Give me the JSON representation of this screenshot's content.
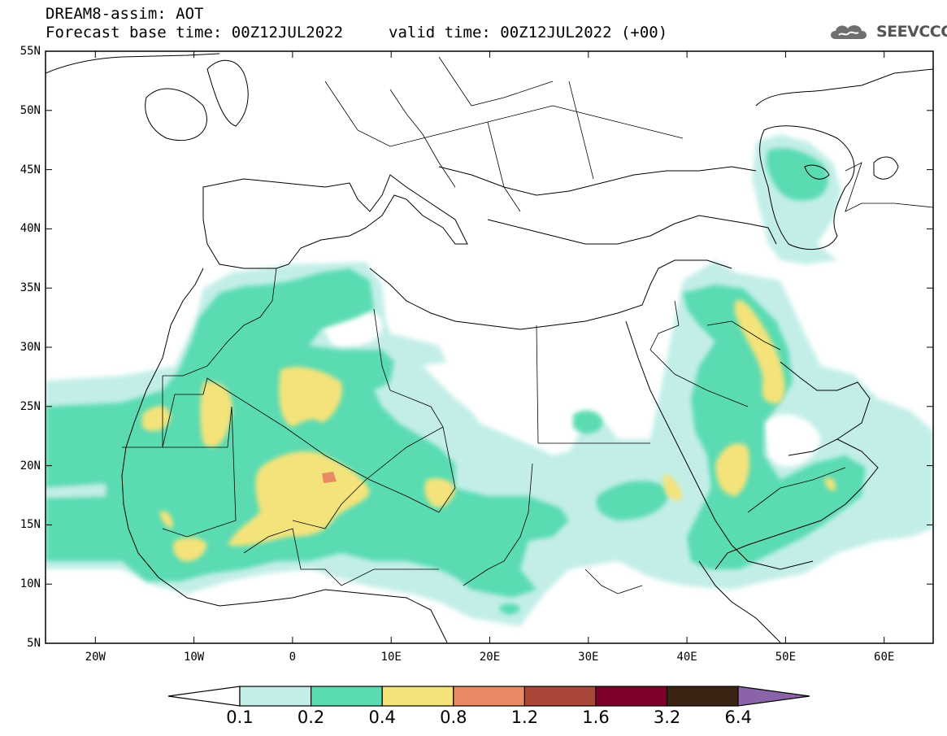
{
  "header": {
    "title_line1": "DREAM8-assim: AOT",
    "title_line2": "Forecast base time: 00Z12JUL2022",
    "valid_time": "valid time: 00Z12JUL2022 (+00)"
  },
  "logo": {
    "text": "SEEVCCC",
    "icon": "cloud-logo-icon"
  },
  "map": {
    "lat_labels": [
      "55N",
      "50N",
      "45N",
      "40N",
      "35N",
      "30N",
      "25N",
      "20N",
      "15N",
      "10N",
      "5N"
    ],
    "lon_labels": [
      "20W",
      "10W",
      "0",
      "10E",
      "20E",
      "30E",
      "40E",
      "50E",
      "60E"
    ]
  },
  "colorbar": {
    "ticks": [
      "0.1",
      "0.2",
      "0.4",
      "0.8",
      "1.2",
      "1.6",
      "3.2",
      "6.4"
    ],
    "colors": {
      "under": "#ffffff",
      "c1": "#c3eee8",
      "c2": "#5adbb2",
      "c3": "#f4e37a",
      "c4": "#e88b65",
      "c5": "#a9483a",
      "c6": "#7c0027",
      "c7": "#3c2415",
      "over": "#8a63a8"
    }
  }
}
